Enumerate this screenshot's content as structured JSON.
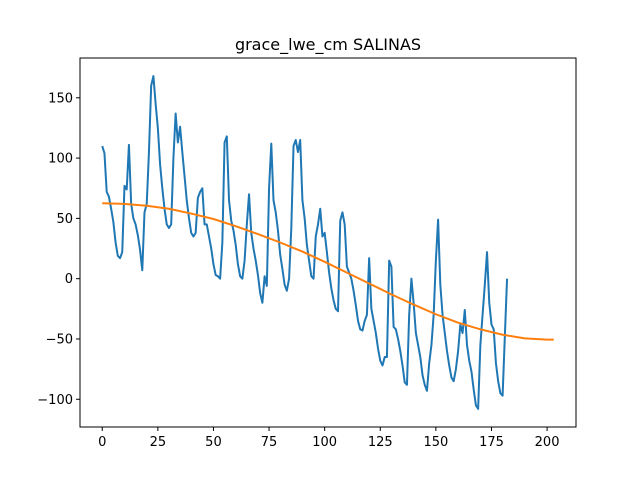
{
  "chart_data": {
    "type": "line",
    "title": "grace_lwe_cm SALINAS",
    "xlabel": "",
    "ylabel": "",
    "xlim": [
      -10,
      213
    ],
    "ylim": [
      -123,
      183
    ],
    "xticks": [
      0,
      25,
      50,
      75,
      100,
      125,
      150,
      175,
      200
    ],
    "yticks": [
      -100,
      -50,
      0,
      50,
      100,
      150
    ],
    "grid": false,
    "series": [
      {
        "color": "#1f77b4",
        "points": [
          [
            0,
            110
          ],
          [
            1,
            104
          ],
          [
            2,
            72
          ],
          [
            3,
            68
          ],
          [
            4,
            58
          ],
          [
            5,
            47
          ],
          [
            6,
            30
          ],
          [
            7,
            19
          ],
          [
            8,
            17
          ],
          [
            9,
            22
          ],
          [
            10,
            77
          ],
          [
            11,
            74
          ],
          [
            12,
            111
          ],
          [
            13,
            62
          ],
          [
            14,
            50
          ],
          [
            15,
            45
          ],
          [
            16,
            36
          ],
          [
            17,
            24
          ],
          [
            18,
            7
          ],
          [
            19,
            55
          ],
          [
            20,
            62
          ],
          [
            21,
            105
          ],
          [
            22,
            160
          ],
          [
            23,
            168
          ],
          [
            24,
            145
          ],
          [
            25,
            125
          ],
          [
            26,
            95
          ],
          [
            27,
            75
          ],
          [
            28,
            58
          ],
          [
            29,
            45
          ],
          [
            30,
            42
          ],
          [
            31,
            45
          ],
          [
            32,
            100
          ],
          [
            33,
            137
          ],
          [
            34,
            113
          ],
          [
            35,
            126
          ],
          [
            36,
            105
          ],
          [
            37,
            85
          ],
          [
            38,
            65
          ],
          [
            39,
            50
          ],
          [
            40,
            38
          ],
          [
            41,
            35
          ],
          [
            42,
            38
          ],
          [
            43,
            67
          ],
          [
            44,
            72
          ],
          [
            45,
            75
          ],
          [
            46,
            45
          ],
          [
            47,
            45
          ],
          [
            48,
            35
          ],
          [
            49,
            25
          ],
          [
            50,
            12
          ],
          [
            51,
            3
          ],
          [
            52,
            2
          ],
          [
            53,
            0
          ],
          [
            54,
            30
          ],
          [
            55,
            113
          ],
          [
            56,
            118
          ],
          [
            57,
            65
          ],
          [
            58,
            48
          ],
          [
            59,
            40
          ],
          [
            60,
            28
          ],
          [
            61,
            12
          ],
          [
            62,
            2
          ],
          [
            63,
            0
          ],
          [
            64,
            15
          ],
          [
            65,
            45
          ],
          [
            66,
            70
          ],
          [
            67,
            38
          ],
          [
            68,
            25
          ],
          [
            69,
            15
          ],
          [
            70,
            3
          ],
          [
            71,
            -12
          ],
          [
            72,
            -20
          ],
          [
            73,
            2
          ],
          [
            74,
            -6
          ],
          [
            75,
            75
          ],
          [
            76,
            112
          ],
          [
            77,
            65
          ],
          [
            78,
            55
          ],
          [
            79,
            40
          ],
          [
            80,
            20
          ],
          [
            81,
            8
          ],
          [
            82,
            -5
          ],
          [
            83,
            -10
          ],
          [
            84,
            0
          ],
          [
            85,
            42
          ],
          [
            86,
            110
          ],
          [
            87,
            115
          ],
          [
            88,
            105
          ],
          [
            89,
            115
          ],
          [
            90,
            65
          ],
          [
            91,
            50
          ],
          [
            92,
            28
          ],
          [
            93,
            15
          ],
          [
            94,
            2
          ],
          [
            95,
            0
          ],
          [
            96,
            35
          ],
          [
            97,
            45
          ],
          [
            98,
            58
          ],
          [
            99,
            35
          ],
          [
            100,
            38
          ],
          [
            101,
            22
          ],
          [
            102,
            5
          ],
          [
            103,
            -8
          ],
          [
            104,
            -18
          ],
          [
            105,
            -25
          ],
          [
            106,
            -27
          ],
          [
            107,
            48
          ],
          [
            108,
            55
          ],
          [
            109,
            45
          ],
          [
            110,
            10
          ],
          [
            111,
            5
          ],
          [
            112,
            0
          ],
          [
            113,
            -10
          ],
          [
            114,
            -22
          ],
          [
            115,
            -35
          ],
          [
            116,
            -42
          ],
          [
            117,
            -43
          ],
          [
            118,
            -35
          ],
          [
            119,
            -30
          ],
          [
            120,
            17
          ],
          [
            121,
            -25
          ],
          [
            122,
            -35
          ],
          [
            123,
            -45
          ],
          [
            124,
            -58
          ],
          [
            125,
            -68
          ],
          [
            126,
            -72
          ],
          [
            127,
            -65
          ],
          [
            128,
            -65
          ],
          [
            129,
            15
          ],
          [
            130,
            10
          ],
          [
            131,
            -40
          ],
          [
            132,
            -42
          ],
          [
            133,
            -50
          ],
          [
            134,
            -60
          ],
          [
            135,
            -72
          ],
          [
            136,
            -86
          ],
          [
            137,
            -88
          ],
          [
            138,
            -30
          ],
          [
            139,
            0
          ],
          [
            140,
            -20
          ],
          [
            141,
            -45
          ],
          [
            142,
            -55
          ],
          [
            143,
            -65
          ],
          [
            144,
            -80
          ],
          [
            145,
            -88
          ],
          [
            146,
            -93
          ],
          [
            147,
            -70
          ],
          [
            148,
            -55
          ],
          [
            149,
            -30
          ],
          [
            150,
            15
          ],
          [
            151,
            49
          ],
          [
            152,
            -5
          ],
          [
            153,
            -30
          ],
          [
            154,
            -45
          ],
          [
            155,
            -60
          ],
          [
            156,
            -72
          ],
          [
            157,
            -82
          ],
          [
            158,
            -85
          ],
          [
            159,
            -75
          ],
          [
            160,
            -60
          ],
          [
            161,
            -38
          ],
          [
            162,
            -45
          ],
          [
            163,
            -26
          ],
          [
            164,
            -55
          ],
          [
            165,
            -68
          ],
          [
            166,
            -77
          ],
          [
            167,
            -92
          ],
          [
            168,
            -105
          ],
          [
            169,
            -108
          ],
          [
            170,
            -55
          ],
          [
            171,
            -30
          ],
          [
            172,
            -5
          ],
          [
            173,
            22
          ],
          [
            174,
            -20
          ],
          [
            175,
            -38
          ],
          [
            176,
            -42
          ],
          [
            177,
            -70
          ],
          [
            178,
            -85
          ],
          [
            179,
            -95
          ],
          [
            180,
            -97
          ],
          [
            181,
            -48
          ],
          [
            182,
            0
          ]
        ]
      },
      {
        "color": "#ff7f0e",
        "points": [
          [
            0,
            62.5
          ],
          [
            10,
            62
          ],
          [
            20,
            60.5
          ],
          [
            30,
            58
          ],
          [
            40,
            54
          ],
          [
            50,
            49.5
          ],
          [
            60,
            43.5
          ],
          [
            70,
            37
          ],
          [
            80,
            30
          ],
          [
            90,
            22.5
          ],
          [
            100,
            14
          ],
          [
            110,
            5
          ],
          [
            120,
            -4
          ],
          [
            130,
            -13
          ],
          [
            140,
            -21.5
          ],
          [
            150,
            -29.5
          ],
          [
            160,
            -36.5
          ],
          [
            170,
            -42
          ],
          [
            180,
            -46.5
          ],
          [
            190,
            -49.5
          ],
          [
            200,
            -50.5
          ],
          [
            203,
            -50.5
          ]
        ]
      }
    ]
  }
}
